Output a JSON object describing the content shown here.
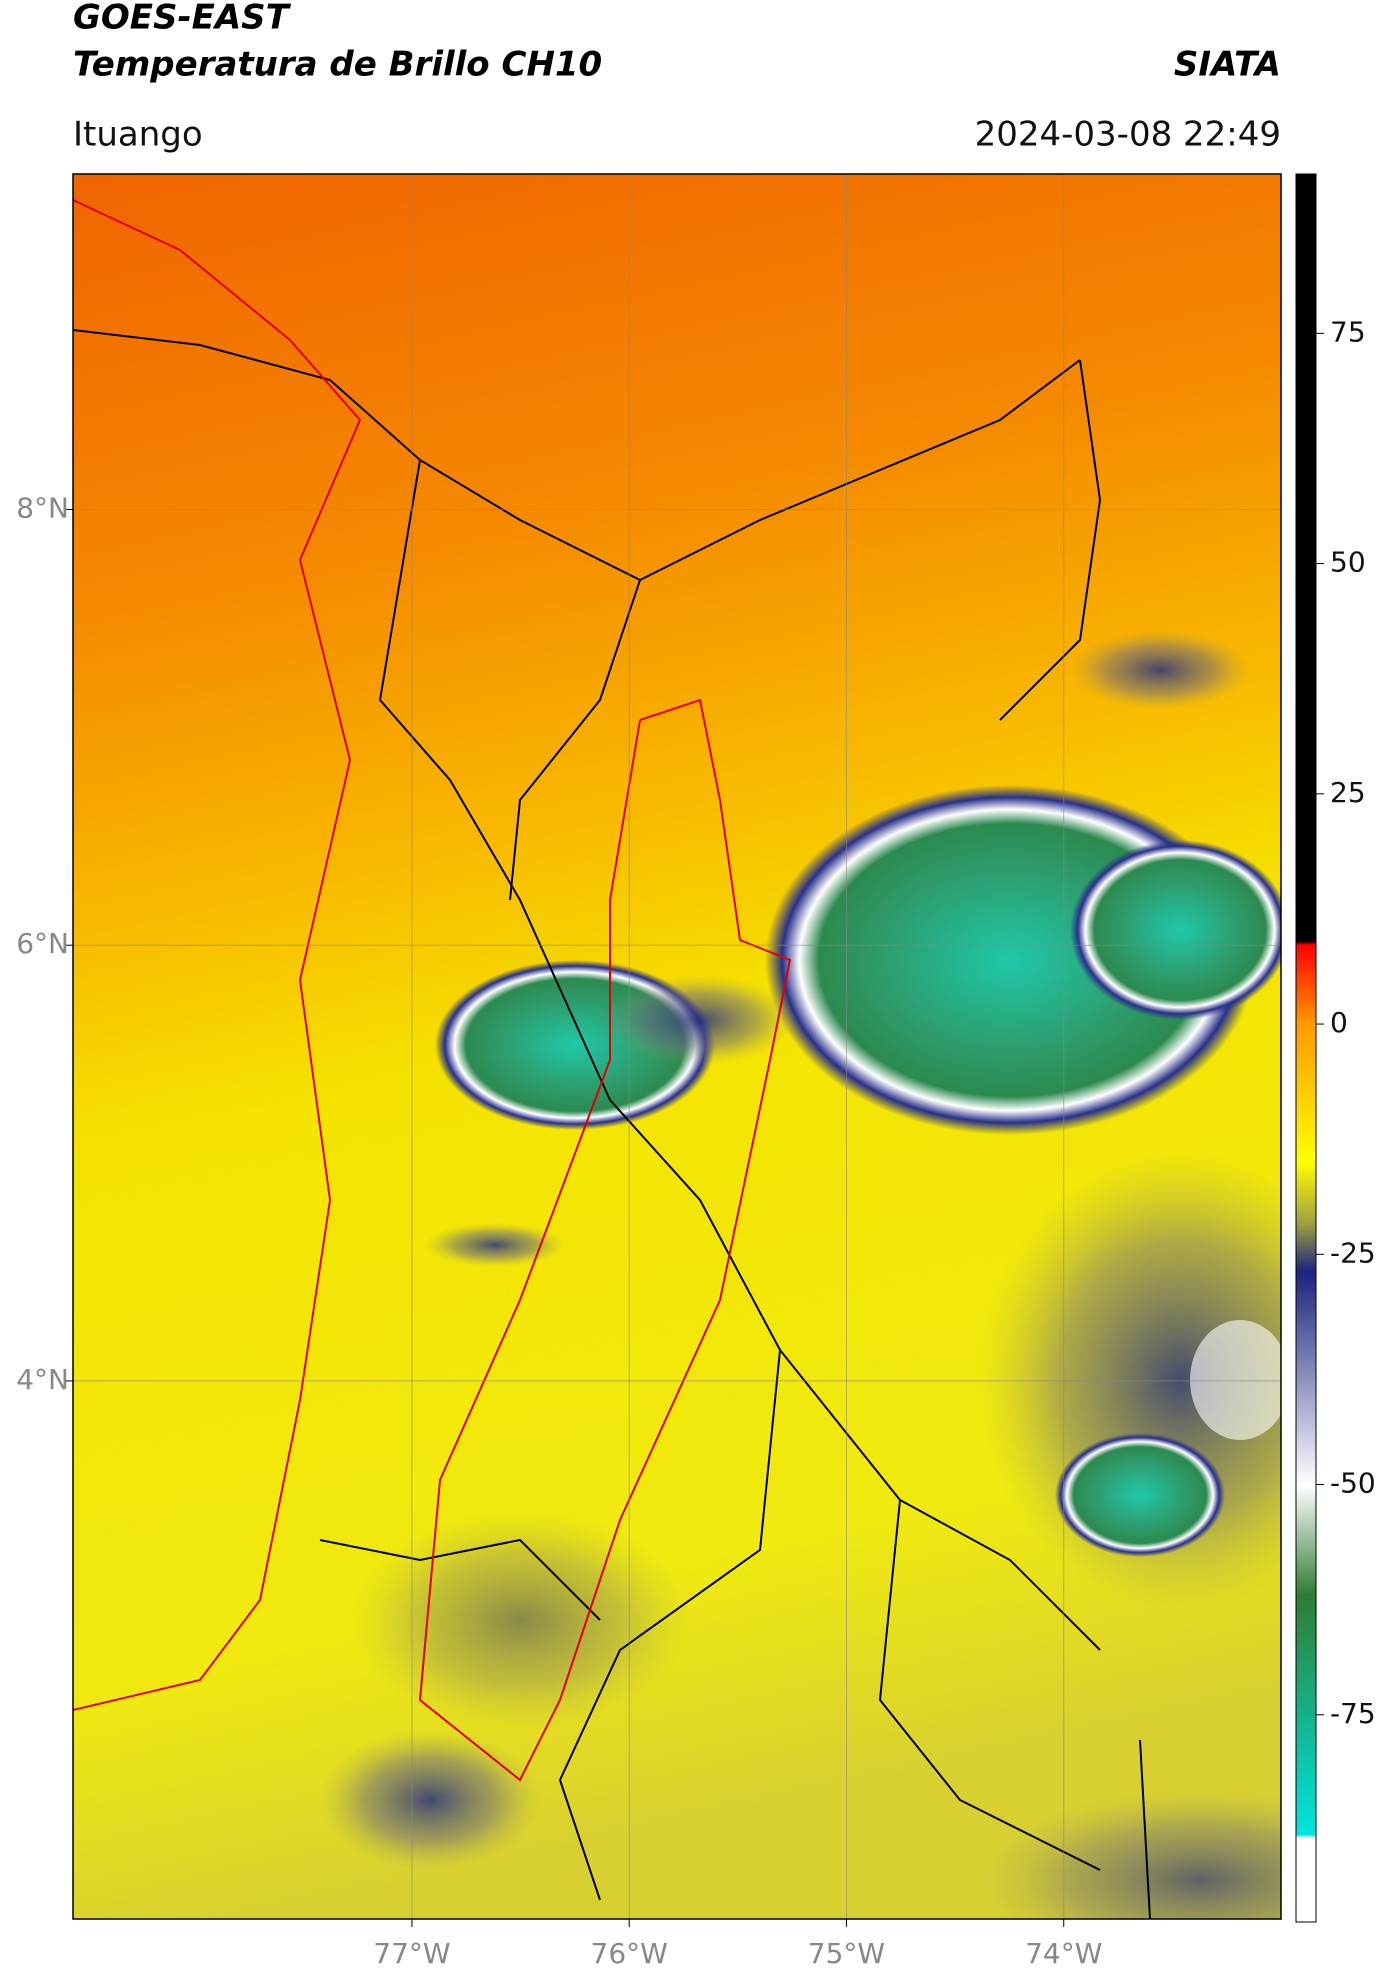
{
  "header": {
    "title": "GOES-EAST",
    "subtitle": "Temperatura de Brillo CH10",
    "source": "SIATA",
    "location": "Ituango",
    "datetime": "2024-03-08 22:49"
  },
  "map": {
    "xlim": [
      -78.56,
      -73.0
    ],
    "ylim": [
      1.53,
      9.54
    ],
    "xticks": [
      {
        "value": -77,
        "label": "77°W"
      },
      {
        "value": -76,
        "label": "76°W"
      },
      {
        "value": -75,
        "label": "75°W"
      },
      {
        "value": -74,
        "label": "74°W"
      }
    ],
    "yticks": [
      {
        "value": 4,
        "label": "4°N"
      },
      {
        "value": 6,
        "label": "6°N"
      },
      {
        "value": 8,
        "label": "8°N"
      }
    ],
    "grid": true
  },
  "colorbar": {
    "lim": [
      -97.5,
      92.3
    ],
    "ticks": [
      -75,
      -50,
      -25,
      0,
      25,
      50,
      75
    ]
  }
}
